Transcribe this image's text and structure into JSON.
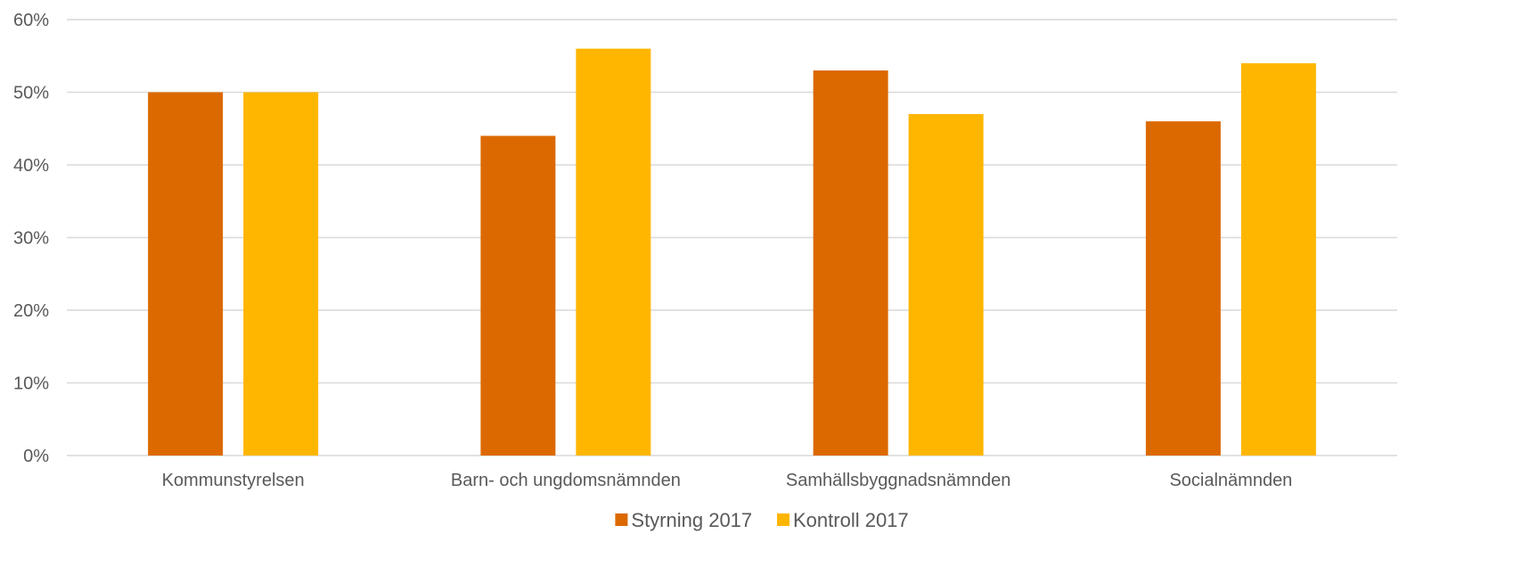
{
  "chart_data": {
    "type": "bar",
    "categories": [
      "Kommunstyrelsen",
      "Barn- och ungdomsnämnden",
      "Samhällsbyggnadsnämnden",
      "Socialnämnden"
    ],
    "series": [
      {
        "name": "Styrning 2017",
        "values": [
          50,
          44,
          53,
          46
        ],
        "color": "#dc6900"
      },
      {
        "name": "Kontroll 2017",
        "values": [
          50,
          56,
          47,
          54
        ],
        "color": "#ffb600"
      }
    ],
    "ylim": [
      0,
      60
    ],
    "yticks": [
      0,
      10,
      20,
      30,
      40,
      50,
      60
    ],
    "ytick_labels": [
      "0%",
      "10%",
      "20%",
      "30%",
      "40%",
      "50%",
      "60%"
    ],
    "title": "",
    "xlabel": "",
    "ylabel": "",
    "grid": true,
    "legend_position": "bottom-center"
  }
}
